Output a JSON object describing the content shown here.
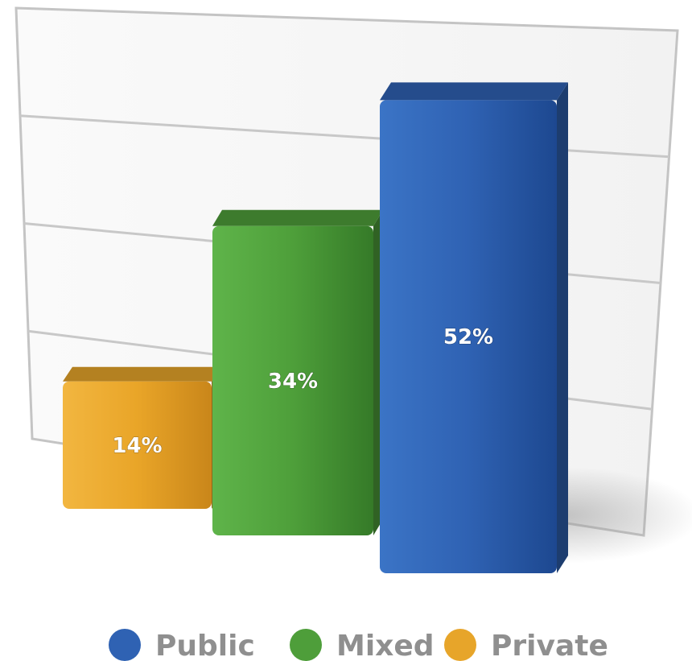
{
  "chart_data": {
    "type": "bar",
    "categories": [
      "Private",
      "Mixed",
      "Public"
    ],
    "values": [
      14,
      34,
      52
    ],
    "data_labels": [
      "14%",
      "34%",
      "52%"
    ],
    "colors": [
      "#e7a52a",
      "#4e9e3a",
      "#2f62b3"
    ],
    "title": "",
    "xlabel": "",
    "ylabel": "",
    "ylim": [
      0,
      60
    ],
    "grid": true,
    "legend": {
      "position": "bottom",
      "entries": [
        {
          "label": "Public",
          "color": "#2f62b3"
        },
        {
          "label": "Mixed",
          "color": "#4e9e3a"
        },
        {
          "label": "Private",
          "color": "#e7a52a"
        }
      ]
    }
  }
}
